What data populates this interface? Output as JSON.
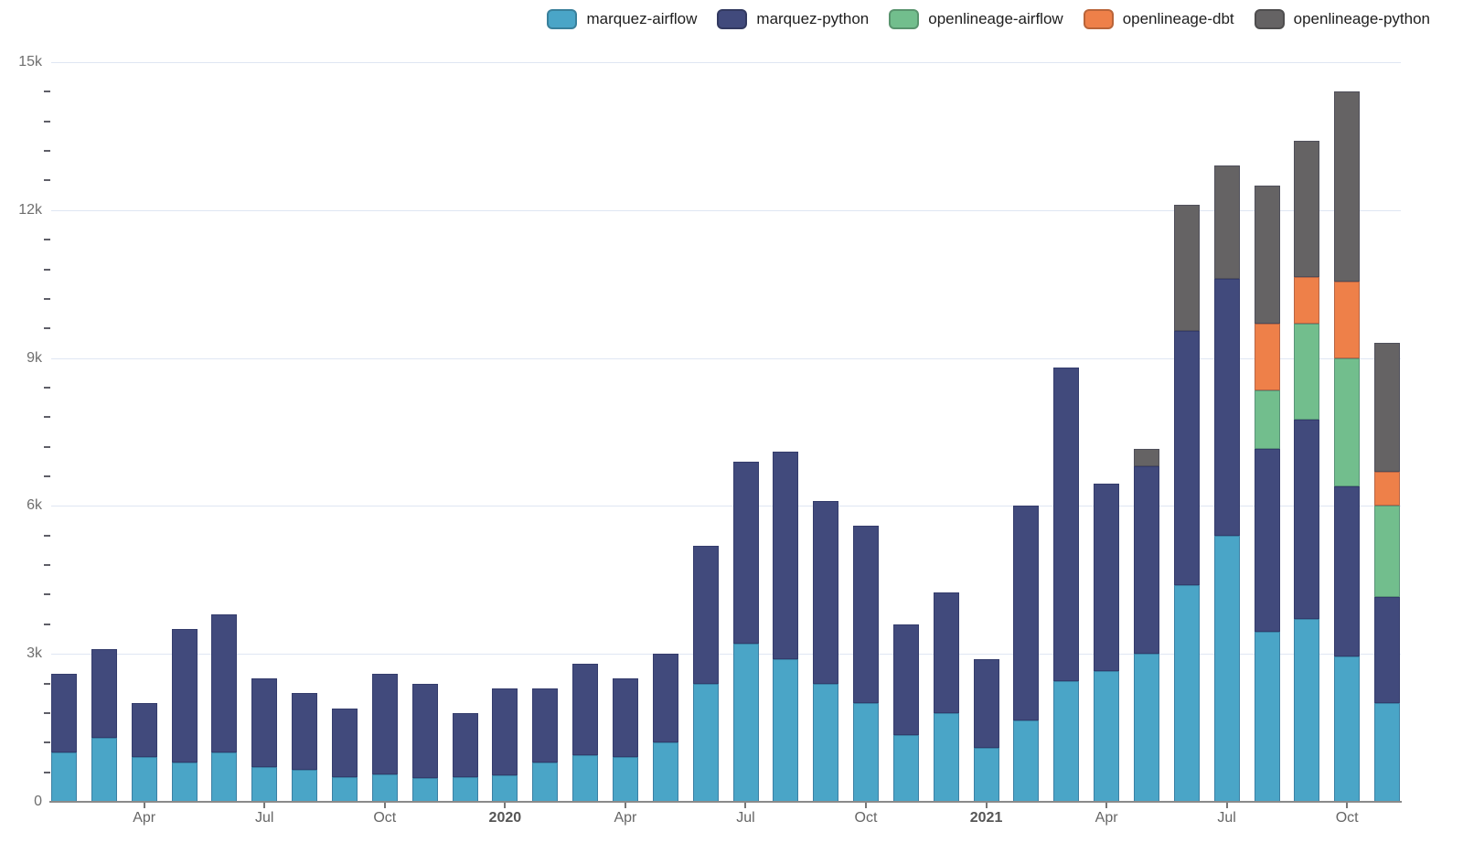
{
  "legend": {
    "items": [
      {
        "label": "marquez-airflow",
        "color": "#4aa5c7"
      },
      {
        "label": "marquez-python",
        "color": "#414a7c"
      },
      {
        "label": "openlineage-airflow",
        "color": "#72be8d"
      },
      {
        "label": "openlineage-dbt",
        "color": "#ee8049"
      },
      {
        "label": "openlineage-python",
        "color": "#656364"
      }
    ]
  },
  "y_axis": {
    "labels": [
      {
        "value": 0,
        "label": "0"
      },
      {
        "value": 3000,
        "label": "3k"
      },
      {
        "value": 6000,
        "label": "6k"
      },
      {
        "value": 9000,
        "label": "9k"
      },
      {
        "value": 12000,
        "label": "12k"
      },
      {
        "value": 15000,
        "label": "15k"
      }
    ]
  },
  "x_axis": {
    "ticks": [
      {
        "index": 2,
        "label": "Apr",
        "bold": false
      },
      {
        "index": 5,
        "label": "Jul",
        "bold": false
      },
      {
        "index": 8,
        "label": "Oct",
        "bold": false
      },
      {
        "index": 11,
        "label": "2020",
        "bold": true
      },
      {
        "index": 14,
        "label": "Apr",
        "bold": false
      },
      {
        "index": 17,
        "label": "Jul",
        "bold": false
      },
      {
        "index": 20,
        "label": "Oct",
        "bold": false
      },
      {
        "index": 23,
        "label": "2021",
        "bold": true
      },
      {
        "index": 26,
        "label": "Apr",
        "bold": false
      },
      {
        "index": 29,
        "label": "Jul",
        "bold": false
      },
      {
        "index": 32,
        "label": "Oct",
        "bold": false
      }
    ]
  },
  "chart_data": {
    "type": "bar",
    "stacked": true,
    "title": "",
    "xlabel": "",
    "ylabel": "",
    "ylim": [
      0,
      15000
    ],
    "y_tick_interval": 3000,
    "y_minor_tick_interval": 600,
    "grid": "horizontal-major",
    "legend_position": "top-right",
    "categories": [
      "Feb 2019",
      "Mar 2019",
      "Apr 2019",
      "May 2019",
      "Jun 2019",
      "Jul 2019",
      "Aug 2019",
      "Sep 2019",
      "Oct 2019",
      "Nov 2019",
      "Dec 2019",
      "Jan 2020",
      "Feb 2020",
      "Mar 2020",
      "Apr 2020",
      "May 2020",
      "Jun 2020",
      "Jul 2020",
      "Aug 2020",
      "Sep 2020",
      "Oct 2020",
      "Nov 2020",
      "Dec 2020",
      "Jan 2021",
      "Feb 2021",
      "Mar 2021",
      "Apr 2021",
      "May 2021",
      "Jun 2021",
      "Jul 2021",
      "Aug 2021",
      "Sep 2021",
      "Oct 2021",
      "Nov 2021"
    ],
    "series": [
      {
        "name": "marquez-airflow",
        "color": "#4aa5c7",
        "values": [
          1000,
          1300,
          900,
          800,
          1000,
          700,
          650,
          500,
          550,
          480,
          500,
          530,
          800,
          950,
          900,
          1200,
          2400,
          3200,
          2900,
          2400,
          2000,
          1350,
          1800,
          1100,
          1650,
          2450,
          2650,
          3000,
          4400,
          5400,
          3450,
          3700,
          2950,
          2000
        ]
      },
      {
        "name": "marquez-python",
        "color": "#414a7c",
        "values": [
          1600,
          1800,
          1100,
          2700,
          2800,
          1800,
          1550,
          1400,
          2050,
          1920,
          1300,
          1770,
          1500,
          1850,
          1600,
          1800,
          2800,
          3700,
          4200,
          3700,
          3600,
          2250,
          2450,
          1800,
          4350,
          6350,
          3800,
          3800,
          5150,
          5200,
          3700,
          4050,
          3450,
          2150
        ]
      },
      {
        "name": "openlineage-airflow",
        "color": "#72be8d",
        "values": [
          0,
          0,
          0,
          0,
          0,
          0,
          0,
          0,
          0,
          0,
          0,
          0,
          0,
          0,
          0,
          0,
          0,
          0,
          0,
          0,
          0,
          0,
          0,
          0,
          0,
          0,
          0,
          0,
          0,
          0,
          1200,
          1950,
          2600,
          1850
        ]
      },
      {
        "name": "openlineage-dbt",
        "color": "#ee8049",
        "values": [
          0,
          0,
          0,
          0,
          0,
          0,
          0,
          0,
          0,
          0,
          0,
          0,
          0,
          0,
          0,
          0,
          0,
          0,
          0,
          0,
          0,
          0,
          0,
          0,
          0,
          0,
          0,
          0,
          0,
          0,
          1350,
          950,
          1550,
          700
        ]
      },
      {
        "name": "openlineage-python",
        "color": "#656364",
        "values": [
          0,
          0,
          0,
          0,
          0,
          0,
          0,
          0,
          0,
          0,
          0,
          0,
          0,
          0,
          0,
          0,
          0,
          0,
          0,
          0,
          0,
          0,
          0,
          0,
          0,
          0,
          0,
          350,
          2550,
          2300,
          2800,
          2750,
          3850,
          2600
        ]
      }
    ]
  }
}
